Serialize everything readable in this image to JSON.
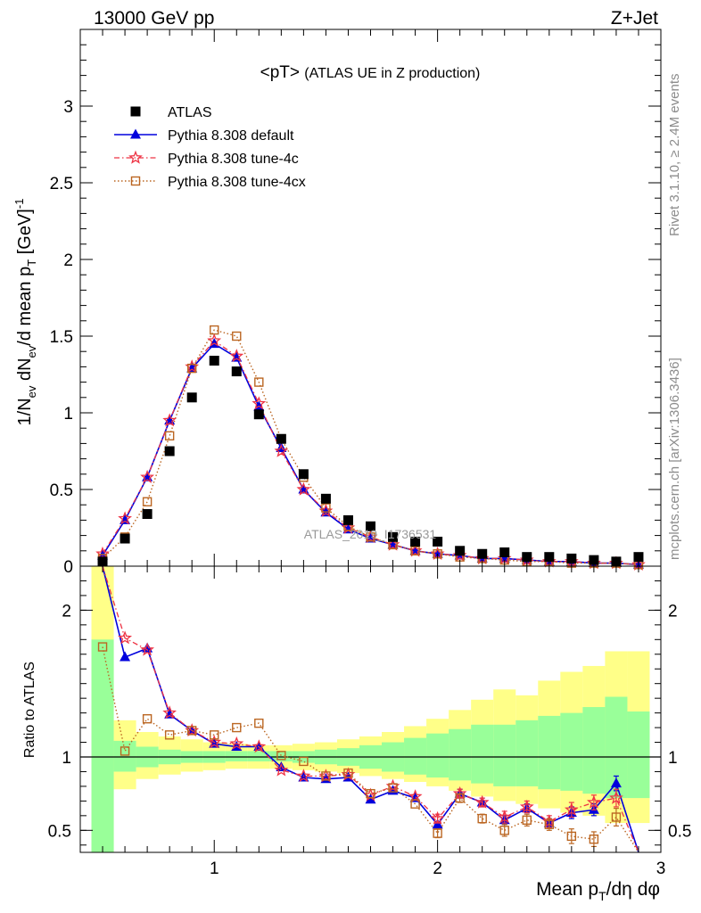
{
  "header": {
    "left": "13000 GeV pp",
    "right": "Z+Jet"
  },
  "side_labels": {
    "rivet": "Rivet 3.1.10, ≥ 2.4M events",
    "mcplots": "mcplots.cern.ch [arXiv:1306.3436]"
  },
  "chart_data": [
    {
      "type": "scatter",
      "title": "<pT>",
      "subtitle": "(ATLAS UE in Z production)",
      "watermark": "ATLAS_2019_I1736531",
      "ylabel": "1/N_ev dN_ev/d mean p_T [GeV]^-1",
      "xlim": [
        0.4,
        3.0
      ],
      "ylim": [
        0,
        3.5
      ],
      "yticks": [
        0,
        0.5,
        1,
        1.5,
        2,
        2.5,
        3
      ],
      "ytick_labels": [
        "0",
        "0.5",
        "1",
        "1.5",
        "2",
        "2.5",
        "3"
      ],
      "legend_position": "top-left",
      "x": [
        0.5,
        0.6,
        0.7,
        0.8,
        0.9,
        1.0,
        1.1,
        1.2,
        1.3,
        1.4,
        1.5,
        1.6,
        1.7,
        1.8,
        1.9,
        2.0,
        2.1,
        2.2,
        2.3,
        2.4,
        2.5,
        2.6,
        2.7,
        2.8,
        2.9
      ],
      "series": [
        {
          "name": "ATLAS",
          "color": "#000000",
          "marker": "square",
          "values": [
            0.03,
            0.18,
            0.34,
            0.75,
            1.1,
            1.34,
            1.27,
            0.99,
            0.83,
            0.6,
            0.44,
            0.3,
            0.26,
            0.19,
            0.16,
            0.16,
            0.1,
            0.08,
            0.09,
            0.06,
            0.06,
            0.05,
            0.04,
            0.03,
            0.06
          ]
        },
        {
          "name": "Pythia 8.308 default",
          "color": "#0000dd",
          "marker": "triangle",
          "values": [
            0.07,
            0.3,
            0.58,
            0.95,
            1.29,
            1.45,
            1.36,
            1.04,
            0.77,
            0.5,
            0.35,
            0.24,
            0.18,
            0.14,
            0.1,
            0.08,
            0.07,
            0.05,
            0.05,
            0.04,
            0.03,
            0.03,
            0.02,
            0.02,
            0.01
          ]
        },
        {
          "name": "Pythia 8.308 tune-4c",
          "color": "#ee3344",
          "marker": "star",
          "values": [
            0.08,
            0.31,
            0.58,
            0.95,
            1.3,
            1.47,
            1.37,
            1.06,
            0.75,
            0.5,
            0.36,
            0.25,
            0.19,
            0.14,
            0.1,
            0.08,
            0.07,
            0.05,
            0.05,
            0.04,
            0.03,
            0.03,
            0.02,
            0.02,
            0.01
          ]
        },
        {
          "name": "Pythia 8.308 tune-4cx",
          "color": "#bb6622",
          "marker": "open-square",
          "values": [
            0.05,
            0.19,
            0.42,
            0.85,
            1.29,
            1.54,
            1.5,
            1.2,
            0.83,
            0.58,
            0.38,
            0.26,
            0.19,
            0.14,
            0.1,
            0.08,
            0.06,
            0.05,
            0.04,
            0.03,
            0.03,
            0.02,
            0.02,
            0.02,
            0.01
          ]
        }
      ]
    },
    {
      "type": "line",
      "ylabel": "Ratio to ATLAS",
      "xlabel": "Mean p_T/dη dφ",
      "xlim": [
        0.4,
        3.0
      ],
      "ylim": [
        0.35,
        2.3
      ],
      "xticks": [
        1,
        2,
        3
      ],
      "xtick_labels": [
        "1",
        "2",
        "3"
      ],
      "yticks": [
        0.5,
        1,
        2
      ],
      "ytick_labels": [
        "0.5",
        "1",
        "2"
      ],
      "x": [
        0.5,
        0.6,
        0.7,
        0.8,
        0.9,
        1.0,
        1.1,
        1.2,
        1.3,
        1.4,
        1.5,
        1.6,
        1.7,
        1.8,
        1.9,
        2.0,
        2.1,
        2.2,
        2.3,
        2.4,
        2.5,
        2.6,
        2.7,
        2.8,
        2.9
      ],
      "bands": {
        "bin_edges": [
          0.45,
          0.55,
          0.65,
          0.75,
          0.85,
          0.95,
          1.05,
          1.15,
          1.25,
          1.35,
          1.45,
          1.55,
          1.65,
          1.75,
          1.85,
          1.95,
          2.05,
          2.15,
          2.25,
          2.35,
          2.45,
          2.55,
          2.65,
          2.75,
          2.85,
          2.95
        ],
        "yellow": {
          "color": "#ffff88",
          "lo": [
            0.2,
            0.78,
            0.85,
            0.88,
            0.9,
            0.91,
            0.92,
            0.92,
            0.92,
            0.91,
            0.9,
            0.89,
            0.87,
            0.85,
            0.83,
            0.8,
            0.77,
            0.73,
            0.7,
            0.68,
            0.65,
            0.62,
            0.6,
            0.55,
            0.55
          ],
          "hi": [
            2.3,
            1.25,
            1.17,
            1.14,
            1.12,
            1.1,
            1.09,
            1.08,
            1.08,
            1.09,
            1.1,
            1.12,
            1.14,
            1.17,
            1.21,
            1.26,
            1.32,
            1.39,
            1.46,
            1.42,
            1.52,
            1.58,
            1.62,
            1.72,
            1.72
          ]
        },
        "green": {
          "color": "#99ff99",
          "lo": [
            0.2,
            0.9,
            0.93,
            0.95,
            0.96,
            0.96,
            0.97,
            0.97,
            0.97,
            0.96,
            0.95,
            0.94,
            0.92,
            0.9,
            0.88,
            0.86,
            0.84,
            0.82,
            0.8,
            0.8,
            0.78,
            0.77,
            0.75,
            0.72,
            0.72
          ],
          "hi": [
            1.8,
            1.11,
            1.07,
            1.05,
            1.04,
            1.04,
            1.04,
            1.04,
            1.04,
            1.04,
            1.05,
            1.06,
            1.08,
            1.1,
            1.13,
            1.16,
            1.19,
            1.22,
            1.22,
            1.25,
            1.28,
            1.3,
            1.34,
            1.41,
            1.31
          ]
        }
      },
      "series": [
        {
          "name": "Pythia 8.308 default",
          "color": "#0000dd",
          "marker": "triangle",
          "values": [
            2.3,
            1.68,
            1.74,
            1.29,
            1.18,
            1.09,
            1.07,
            1.07,
            0.93,
            0.86,
            0.85,
            0.86,
            0.71,
            0.77,
            0.72,
            0.54,
            0.75,
            0.69,
            0.57,
            0.65,
            0.55,
            0.62,
            0.64,
            0.82,
            0.2
          ],
          "errors": [
            0,
            0,
            0,
            0,
            0,
            0,
            0,
            0,
            0,
            0,
            0,
            0,
            0,
            0,
            0,
            0.02,
            0.03,
            0.03,
            0.03,
            0.03,
            0.03,
            0.04,
            0.04,
            0.05,
            0
          ]
        },
        {
          "name": "Pythia 8.308 tune-4c",
          "color": "#ee3344",
          "marker": "star",
          "values": [
            2.3,
            1.81,
            1.73,
            1.3,
            1.18,
            1.1,
            1.09,
            1.07,
            0.91,
            0.87,
            0.87,
            0.88,
            0.74,
            0.8,
            0.73,
            0.58,
            0.75,
            0.69,
            0.59,
            0.66,
            0.56,
            0.64,
            0.69,
            0.72,
            0.2
          ],
          "errors": [
            0,
            0,
            0,
            0,
            0,
            0,
            0,
            0,
            0,
            0,
            0,
            0,
            0,
            0,
            0,
            0.03,
            0.03,
            0.03,
            0.04,
            0.04,
            0.04,
            0.05,
            0.05,
            0.06,
            0
          ]
        },
        {
          "name": "Pythia 8.308 tune-4cx",
          "color": "#bb6622",
          "marker": "open-square",
          "values": [
            1.75,
            1.04,
            1.26,
            1.15,
            1.18,
            1.15,
            1.2,
            1.23,
            1.01,
            0.97,
            0.87,
            0.89,
            0.75,
            0.79,
            0.68,
            0.48,
            0.72,
            0.58,
            0.5,
            0.57,
            0.54,
            0.46,
            0.44,
            0.59,
            0.2
          ],
          "errors": [
            0,
            0,
            0,
            0,
            0,
            0,
            0,
            0,
            0,
            0,
            0,
            0,
            0,
            0,
            0,
            0.03,
            0.03,
            0.03,
            0.04,
            0.04,
            0.04,
            0.05,
            0.05,
            0.06,
            0
          ]
        }
      ],
      "reference_line": 1
    }
  ]
}
